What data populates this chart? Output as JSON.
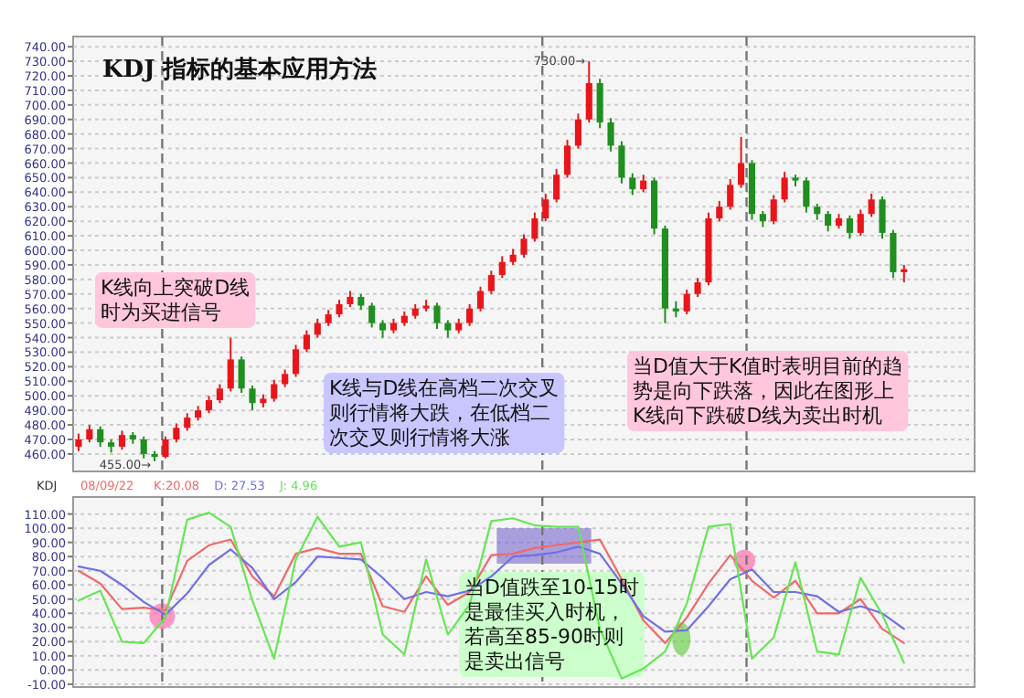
{
  "chart_data": [
    {
      "type": "candlestick",
      "title": "KDJ 指标的基本应用方法",
      "categories": [
        null,
        null,
        null,
        null,
        null,
        null,
        null,
        null,
        null,
        null,
        null,
        null,
        null,
        null,
        null,
        null,
        null,
        null,
        null,
        null,
        null,
        null,
        null,
        null,
        null,
        null,
        null,
        null,
        null,
        null,
        null,
        null,
        null,
        null,
        null,
        null,
        null,
        null,
        null,
        null,
        null,
        null,
        null,
        null,
        null,
        null,
        null,
        null,
        null,
        null,
        null,
        null,
        null,
        null,
        null,
        null,
        null,
        null,
        null,
        null,
        null,
        null,
        null,
        null,
        null,
        null,
        null,
        null,
        null,
        null,
        null,
        null,
        null,
        null,
        null,
        null,
        null
      ],
      "ohlc": [
        [
          465,
          474,
          462,
          470
        ],
        [
          470,
          480,
          468,
          477
        ],
        [
          477,
          479,
          465,
          468
        ],
        [
          468,
          470,
          461,
          465
        ],
        [
          465,
          476,
          463,
          473
        ],
        [
          473,
          475,
          467,
          470
        ],
        [
          470,
          472,
          457,
          460
        ],
        [
          460,
          462,
          455,
          458
        ],
        [
          458,
          472,
          457,
          470
        ],
        [
          470,
          481,
          468,
          478
        ],
        [
          478,
          488,
          476,
          485
        ],
        [
          485,
          493,
          483,
          490
        ],
        [
          490,
          500,
          488,
          497
        ],
        [
          497,
          508,
          495,
          505
        ],
        [
          505,
          540,
          503,
          525
        ],
        [
          525,
          527,
          502,
          505
        ],
        [
          505,
          507,
          490,
          495
        ],
        [
          495,
          501,
          492,
          498
        ],
        [
          498,
          511,
          496,
          508
        ],
        [
          508,
          518,
          506,
          515
        ],
        [
          515,
          535,
          513,
          532
        ],
        [
          532,
          545,
          530,
          542
        ],
        [
          542,
          553,
          540,
          550
        ],
        [
          550,
          559,
          548,
          556
        ],
        [
          556,
          566,
          554,
          563
        ],
        [
          563,
          572,
          561,
          568
        ],
        [
          568,
          570,
          559,
          562
        ],
        [
          562,
          564,
          547,
          550
        ],
        [
          550,
          552,
          540,
          545
        ],
        [
          545,
          553,
          543,
          550
        ],
        [
          550,
          558,
          548,
          555
        ],
        [
          555,
          563,
          553,
          560
        ],
        [
          560,
          566,
          558,
          562
        ],
        [
          562,
          564,
          546,
          550
        ],
        [
          550,
          552,
          540,
          545
        ],
        [
          545,
          553,
          543,
          550
        ],
        [
          550,
          563,
          548,
          560
        ],
        [
          560,
          575,
          558,
          572
        ],
        [
          572,
          586,
          570,
          583
        ],
        [
          583,
          596,
          581,
          592
        ],
        [
          592,
          601,
          590,
          597
        ],
        [
          597,
          611,
          595,
          608
        ],
        [
          608,
          626,
          606,
          622
        ],
        [
          622,
          639,
          620,
          635
        ],
        [
          635,
          656,
          633,
          652
        ],
        [
          652,
          676,
          650,
          672
        ],
        [
          672,
          694,
          670,
          690
        ],
        [
          690,
          730,
          688,
          715
        ],
        [
          715,
          718,
          684,
          688
        ],
        [
          688,
          691,
          668,
          672
        ],
        [
          672,
          675,
          646,
          650
        ],
        [
          650,
          653,
          638,
          642
        ],
        [
          642,
          652,
          640,
          648
        ],
        [
          648,
          650,
          611,
          615
        ],
        [
          615,
          617,
          550,
          560
        ],
        [
          560,
          565,
          554,
          558
        ],
        [
          558,
          573,
          556,
          570
        ],
        [
          570,
          581,
          568,
          578
        ],
        [
          578,
          626,
          576,
          622
        ],
        [
          622,
          634,
          620,
          630
        ],
        [
          630,
          649,
          628,
          645
        ],
        [
          645,
          678,
          643,
          660
        ],
        [
          660,
          662,
          621,
          625
        ],
        [
          625,
          627,
          616,
          620
        ],
        [
          620,
          638,
          618,
          635
        ],
        [
          635,
          654,
          633,
          650
        ],
        [
          650,
          652,
          644,
          648
        ],
        [
          648,
          650,
          626,
          630
        ],
        [
          630,
          632,
          621,
          625
        ],
        [
          625,
          627,
          613,
          617
        ],
        [
          617,
          625,
          615,
          622
        ],
        [
          622,
          624,
          608,
          612
        ],
        [
          612,
          628,
          610,
          625
        ],
        [
          625,
          639,
          623,
          635
        ],
        [
          635,
          637,
          608,
          612
        ],
        [
          612,
          614,
          581,
          585
        ],
        [
          585,
          590,
          578,
          587
        ]
      ],
      "colors": [
        "#e8161b",
        "#e8161b",
        "#1f8f1f",
        "#1f8f1f",
        "#e8161b",
        "#1f8f1f",
        "#1f8f1f",
        "#1f8f1f",
        "#e8161b",
        "#e8161b",
        "#e8161b",
        "#e8161b",
        "#e8161b",
        "#e8161b",
        "#e8161b",
        "#1f8f1f",
        "#1f8f1f",
        "#e8161b",
        "#e8161b",
        "#e8161b",
        "#e8161b",
        "#e8161b",
        "#e8161b",
        "#e8161b",
        "#e8161b",
        "#e8161b",
        "#1f8f1f",
        "#1f8f1f",
        "#1f8f1f",
        "#e8161b",
        "#e8161b",
        "#e8161b",
        "#e8161b",
        "#1f8f1f",
        "#1f8f1f",
        "#e8161b",
        "#e8161b",
        "#e8161b",
        "#e8161b",
        "#e8161b",
        "#e8161b",
        "#e8161b",
        "#e8161b",
        "#e8161b",
        "#e8161b",
        "#e8161b",
        "#e8161b",
        "#e8161b",
        "#1f8f1f",
        "#1f8f1f",
        "#1f8f1f",
        "#1f8f1f",
        "#e8161b",
        "#1f8f1f",
        "#1f8f1f",
        "#1f8f1f",
        "#e8161b",
        "#e8161b",
        "#e8161b",
        "#e8161b",
        "#e8161b",
        "#e8161b",
        "#1f8f1f",
        "#1f8f1f",
        "#e8161b",
        "#e8161b",
        "#1f8f1f",
        "#1f8f1f",
        "#1f8f1f",
        "#1f8f1f",
        "#e8161b",
        "#1f8f1f",
        "#e8161b",
        "#e8161b",
        "#1f8f1f",
        "#1f8f1f",
        "#e8161b"
      ],
      "ylim": [
        448,
        747
      ],
      "yticks": [
        {
          "value": 460,
          "label": "460.00"
        },
        {
          "value": 470,
          "label": "470.00"
        },
        {
          "value": 480,
          "label": "480.00"
        },
        {
          "value": 490,
          "label": "490.00"
        },
        {
          "value": 500,
          "label": "500.00"
        },
        {
          "value": 510,
          "label": "510.00"
        },
        {
          "value": 520,
          "label": "520.00"
        },
        {
          "value": 530,
          "label": "530.00"
        },
        {
          "value": 540,
          "label": "540.00"
        },
        {
          "value": 550,
          "label": "550.00"
        },
        {
          "value": 560,
          "label": "560.00"
        },
        {
          "value": 570,
          "label": "570.00"
        },
        {
          "value": 580,
          "label": "580.00"
        },
        {
          "value": 590,
          "label": "590.00"
        },
        {
          "value": 600,
          "label": "600.00"
        },
        {
          "value": 610,
          "label": "610.00"
        },
        {
          "value": 620,
          "label": "620.00"
        },
        {
          "value": 630,
          "label": "630.00"
        },
        {
          "value": 640,
          "label": "640.00"
        },
        {
          "value": 650,
          "label": "650.00"
        },
        {
          "value": 660,
          "label": "660.00"
        },
        {
          "value": 670,
          "label": "670.00"
        },
        {
          "value": 680,
          "label": "680.00"
        },
        {
          "value": 690,
          "label": "690.00"
        },
        {
          "value": 700,
          "label": "700.00"
        },
        {
          "value": 710,
          "label": "710.00"
        },
        {
          "value": 720,
          "label": "720.00"
        },
        {
          "value": 730,
          "label": "730.00"
        },
        {
          "value": 740,
          "label": "740.00"
        }
      ],
      "tick_labels": "y",
      "grid": "y",
      "annotations": [
        "730.00→",
        "455.00→",
        "K线向上突破D线时为买进信号",
        "K线与D线在高档二次交叉则行情将大跌，在低档二次交叉则行情将大涨",
        "当D值大于K值时表明目前的趋势是向下跌落，因此在图形上K线向下跌破D线为卖出时机"
      ]
    },
    {
      "type": "line",
      "categories": [
        null,
        null,
        null,
        null,
        null,
        null,
        null,
        null,
        null,
        null,
        null,
        null,
        null,
        null,
        null,
        null,
        null,
        null,
        null,
        null,
        null,
        null,
        null,
        null,
        null,
        null,
        null,
        null,
        null,
        null,
        null,
        null,
        null,
        null,
        null,
        null,
        null,
        null,
        null
      ],
      "ylim": [
        -12,
        122
      ],
      "yticks": [
        {
          "value": -10,
          "label": "-10.00"
        },
        {
          "value": 0,
          "label": "0.00"
        },
        {
          "value": 10,
          "label": "10.00"
        },
        {
          "value": 20,
          "label": "20.00"
        },
        {
          "value": 30,
          "label": "30.00"
        },
        {
          "value": 40,
          "label": "40.00"
        },
        {
          "value": 50,
          "label": "50.00"
        },
        {
          "value": 60,
          "label": "60.00"
        },
        {
          "value": 70,
          "label": "70.00"
        },
        {
          "value": 80,
          "label": "80.00"
        },
        {
          "value": 90,
          "label": "90.00"
        },
        {
          "value": 100,
          "label": "100.00"
        },
        {
          "value": 110,
          "label": "110.00"
        }
      ],
      "tick_labels": "y",
      "grid": "y",
      "series": [
        {
          "name": "K:20.08",
          "color": "#f06a6a",
          "values": [
            70,
            61,
            43,
            44,
            42,
            77,
            88,
            92,
            66,
            52,
            82,
            86,
            82,
            82,
            45,
            41,
            66,
            46,
            55,
            81,
            82,
            86,
            88,
            90,
            92,
            64,
            35,
            19,
            37,
            61,
            81,
            63,
            51,
            63,
            40,
            40,
            50,
            29,
            19
          ]
        },
        {
          "name": "D: 27.53",
          "color": "#7070e6",
          "values": [
            73,
            70,
            60,
            48,
            39,
            54,
            74,
            85,
            72,
            50,
            62,
            80,
            79,
            78,
            65,
            50,
            55,
            52,
            56,
            66,
            80,
            81,
            83,
            87,
            82,
            61,
            38,
            27,
            28,
            45,
            64,
            71,
            55,
            55,
            52,
            41,
            45,
            40,
            29
          ]
        },
        {
          "name": "J: 4.96",
          "color": "#66e655",
          "values": [
            49,
            56,
            20,
            19,
            37,
            106,
            111,
            101,
            49,
            8,
            78,
            108,
            87,
            90,
            25,
            11,
            78,
            25,
            46,
            105,
            107,
            102,
            101,
            101,
            29,
            -6,
            1,
            13,
            47,
            101,
            103,
            8,
            23,
            76,
            13,
            11,
            65,
            39,
            5
          ]
        }
      ],
      "line_style": "solid",
      "annotations": [
        "KDJ",
        "08/09/22",
        "当D值跌至10-15时是最佳买入时机，若高至85-90时则是卖出信号"
      ]
    }
  ]
}
